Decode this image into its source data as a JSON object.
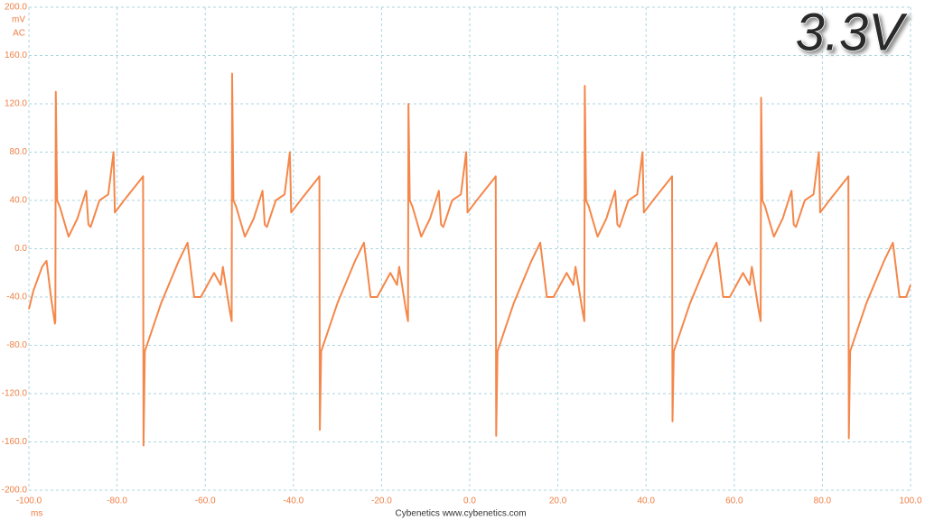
{
  "chart_data": {
    "type": "line",
    "title": "3.3V",
    "y_unit": "mV",
    "coupling": "AC",
    "x_unit": "ms",
    "footer": "Cybenetics  www.cybenetics.com",
    "color": "#f5874a",
    "grid": true,
    "xlim": [
      -100,
      100
    ],
    "ylim": [
      -200,
      200
    ],
    "xticks": [
      {
        "value": -100,
        "label": "-100.0"
      },
      {
        "value": -80,
        "label": "-80.0"
      },
      {
        "value": -60,
        "label": "-60.0"
      },
      {
        "value": -40,
        "label": "-40.0"
      },
      {
        "value": -20,
        "label": "-20.0"
      },
      {
        "value": 0,
        "label": "0.0"
      },
      {
        "value": 20,
        "label": "20.0"
      },
      {
        "value": 40,
        "label": "40.0"
      },
      {
        "value": 60,
        "label": "60.0"
      },
      {
        "value": 80,
        "label": "80.0"
      },
      {
        "value": 100,
        "label": "100.0"
      }
    ],
    "yticks": [
      {
        "value": 200,
        "label": "200.0"
      },
      {
        "value": 160,
        "label": "160.0"
      },
      {
        "value": 120,
        "label": "120.0"
      },
      {
        "value": 80,
        "label": "80.0"
      },
      {
        "value": 40,
        "label": "40.0"
      },
      {
        "value": 0,
        "label": "0.0"
      },
      {
        "value": -40,
        "label": "-40.0"
      },
      {
        "value": -80,
        "label": "-80.0"
      },
      {
        "value": -120,
        "label": "-120.0"
      },
      {
        "value": -160,
        "label": "-160.0"
      },
      {
        "value": -200,
        "label": "-200.0"
      }
    ],
    "x": [
      -100,
      -99,
      -97,
      -96,
      -95,
      -94.1,
      -94,
      -93.9,
      -93.6,
      -93,
      -91,
      -89,
      -87,
      -86.5,
      -86,
      -84,
      -82,
      -80.8,
      -80.5,
      -78,
      -74.5,
      -74.1,
      -74,
      -73.7,
      -70,
      -66,
      -64,
      -63.5,
      -62.5,
      -61,
      -58,
      -56.5,
      -56,
      -54.5,
      -54,
      -53.9,
      -53.6,
      -53,
      -51,
      -49,
      -47,
      -46.5,
      -46,
      -44,
      -42,
      -40.8,
      -40.5,
      -38,
      -34.5,
      -34.1,
      -34,
      -33.7,
      -30,
      -26,
      -24,
      -23.5,
      -22.5,
      -21,
      -18,
      -16.5,
      -16,
      -14.5,
      -14,
      -13.9,
      -13.6,
      -13,
      -11,
      -9,
      -7,
      -6.5,
      -6,
      -4,
      -2,
      -0.8,
      -0.5,
      2,
      5.5,
      5.9,
      6,
      6.3,
      10,
      14,
      16,
      16.5,
      17.5,
      19,
      22,
      23.5,
      24,
      25.5,
      26,
      26.1,
      26.4,
      27,
      29,
      31,
      33,
      33.5,
      34,
      36,
      38,
      39.2,
      39.5,
      42,
      45.5,
      45.9,
      46,
      46.3,
      50,
      54,
      56,
      56.5,
      57.5,
      59,
      62,
      63.5,
      64,
      65.5,
      66,
      66.1,
      66.4,
      67,
      69,
      71,
      73,
      73.5,
      74,
      76,
      78,
      79.2,
      79.5,
      82,
      85.5,
      85.9,
      86,
      86.3,
      90,
      94,
      96,
      96.5,
      97.5,
      99,
      100
    ],
    "values": [
      -50,
      -35,
      -15,
      -10,
      -40,
      -62,
      -60,
      130,
      40,
      35,
      10,
      25,
      48,
      20,
      18,
      40,
      45,
      80,
      30,
      42,
      58,
      60,
      -163,
      -85,
      -45,
      -10,
      5,
      -10,
      -40,
      -40,
      -20,
      -30,
      -15,
      -50,
      -60,
      145,
      40,
      35,
      10,
      25,
      48,
      20,
      18,
      40,
      45,
      80,
      30,
      42,
      58,
      60,
      -150,
      -85,
      -45,
      -10,
      5,
      -10,
      -40,
      -40,
      -20,
      -30,
      -15,
      -50,
      -60,
      120,
      40,
      35,
      10,
      25,
      48,
      20,
      18,
      40,
      45,
      80,
      30,
      42,
      58,
      60,
      -155,
      -85,
      -45,
      -10,
      5,
      -10,
      -40,
      -40,
      -20,
      -30,
      -15,
      -50,
      -60,
      135,
      40,
      35,
      10,
      25,
      48,
      20,
      18,
      40,
      45,
      80,
      30,
      42,
      58,
      60,
      -143,
      -85,
      -45,
      -10,
      5,
      -10,
      -40,
      -40,
      -20,
      -30,
      -15,
      -50,
      -60,
      125,
      40,
      35,
      10,
      25,
      48,
      20,
      18,
      40,
      45,
      80,
      30,
      42,
      58,
      60,
      -157,
      -85,
      -45,
      -10,
      5,
      -10,
      -40,
      -40,
      -30
    ]
  }
}
